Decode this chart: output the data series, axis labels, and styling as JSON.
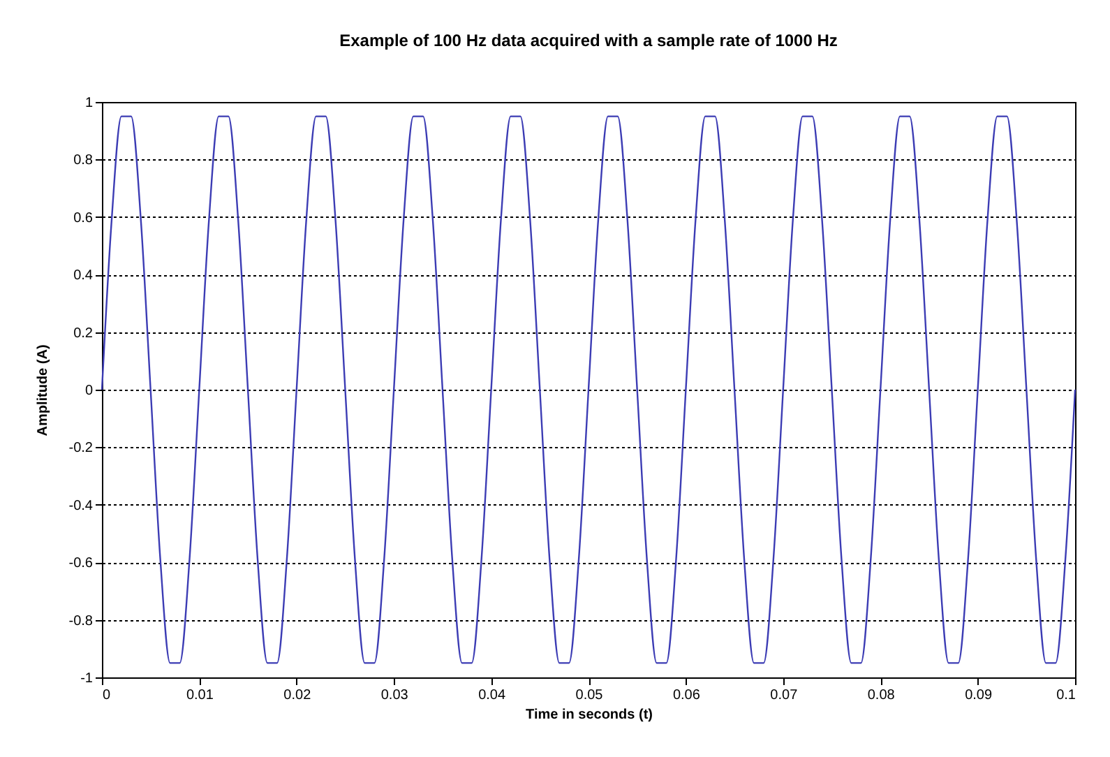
{
  "chart_data": {
    "type": "line",
    "title": "Example of 100 Hz data acquired with a sample rate of 1000 Hz",
    "xlabel": "Time in seconds (t)",
    "ylabel": "Amplitude (A)",
    "x": [
      0,
      0.001,
      0.002,
      0.003,
      0.004,
      0.005,
      0.006,
      0.007,
      0.008,
      0.009,
      0.01,
      0.011,
      0.012,
      0.013,
      0.014,
      0.015,
      0.016,
      0.017,
      0.018,
      0.019,
      0.02,
      0.021,
      0.022,
      0.023,
      0.024,
      0.025,
      0.026,
      0.027,
      0.028,
      0.029,
      0.03,
      0.031,
      0.032,
      0.033,
      0.034,
      0.035,
      0.036,
      0.037,
      0.038,
      0.039,
      0.04,
      0.041,
      0.042,
      0.043,
      0.044,
      0.045,
      0.046,
      0.047,
      0.048,
      0.049,
      0.05,
      0.051,
      0.052,
      0.053,
      0.054,
      0.055,
      0.056,
      0.057,
      0.058,
      0.059,
      0.06,
      0.061,
      0.062,
      0.063,
      0.064,
      0.065,
      0.066,
      0.067,
      0.068,
      0.069,
      0.07,
      0.071,
      0.072,
      0.073,
      0.074,
      0.075,
      0.076,
      0.077,
      0.078,
      0.079,
      0.08,
      0.081,
      0.082,
      0.083,
      0.084,
      0.085,
      0.086,
      0.087,
      0.088,
      0.089,
      0.09,
      0.091,
      0.092,
      0.093,
      0.094,
      0.095,
      0.096,
      0.097,
      0.098,
      0.099,
      0.1
    ],
    "series": [
      {
        "color": "#3c3cb4",
        "values": [
          0,
          0.59,
          0.95,
          0.95,
          0.59,
          0,
          -0.59,
          -0.95,
          -0.95,
          -0.59,
          0,
          0.59,
          0.95,
          0.95,
          0.59,
          0,
          -0.59,
          -0.95,
          -0.95,
          -0.59,
          0,
          0.59,
          0.95,
          0.95,
          0.59,
          0,
          -0.59,
          -0.95,
          -0.95,
          -0.59,
          0,
          0.59,
          0.95,
          0.95,
          0.59,
          0,
          -0.59,
          -0.95,
          -0.95,
          -0.59,
          0,
          0.59,
          0.95,
          0.95,
          0.59,
          0,
          -0.59,
          -0.95,
          -0.95,
          -0.59,
          0,
          0.59,
          0.95,
          0.95,
          0.59,
          0,
          -0.59,
          -0.95,
          -0.95,
          -0.59,
          0,
          0.59,
          0.95,
          0.95,
          0.59,
          0,
          -0.59,
          -0.95,
          -0.95,
          -0.59,
          0,
          0.59,
          0.95,
          0.95,
          0.59,
          0,
          -0.59,
          -0.95,
          -0.95,
          -0.59,
          0,
          0.59,
          0.95,
          0.95,
          0.59,
          0,
          -0.59,
          -0.95,
          -0.95,
          -0.59,
          0,
          0.59,
          0.95,
          0.95,
          0.59,
          0,
          -0.59,
          -0.95,
          -0.95,
          -0.59,
          0
        ]
      }
    ],
    "xlim": [
      0,
      0.1
    ],
    "xticks": [
      0,
      0.01,
      0.02,
      0.03,
      0.04,
      0.05,
      0.06,
      0.07,
      0.08,
      0.09,
      0.1
    ],
    "ylim": [
      -1,
      1
    ],
    "yticks": [
      -1,
      -0.8,
      -0.6,
      -0.4,
      -0.2,
      0,
      0.2,
      0.4,
      0.6,
      0.8,
      1
    ],
    "grid": "y",
    "marker": "none",
    "line_style": "solid"
  }
}
